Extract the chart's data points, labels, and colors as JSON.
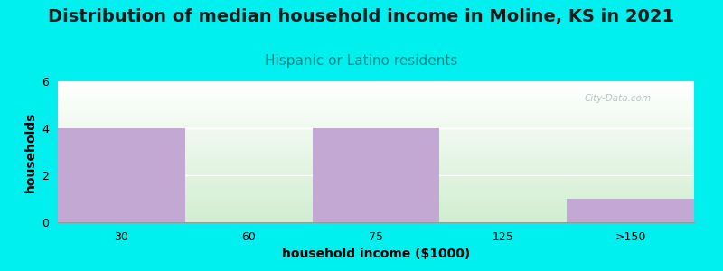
{
  "title": "Distribution of median household income in Moline, KS in 2021",
  "subtitle": "Hispanic or Latino residents",
  "xlabel": "household income ($1000)",
  "ylabel": "households",
  "categories": [
    "30",
    "60",
    "75",
    "125",
    ">150"
  ],
  "values": [
    4,
    0,
    4,
    0,
    1
  ],
  "bar_color": "#C4A8D4",
  "background_color": "#00EFEF",
  "plot_bg_top": "#FFFFFF",
  "plot_bg_bottom": "#D0EDD0",
  "ylim": [
    0,
    6
  ],
  "yticks": [
    0,
    2,
    4,
    6
  ],
  "title_fontsize": 14,
  "subtitle_fontsize": 11,
  "subtitle_color": "#008888",
  "axis_label_fontsize": 10,
  "tick_fontsize": 9,
  "watermark": "City-Data.com"
}
